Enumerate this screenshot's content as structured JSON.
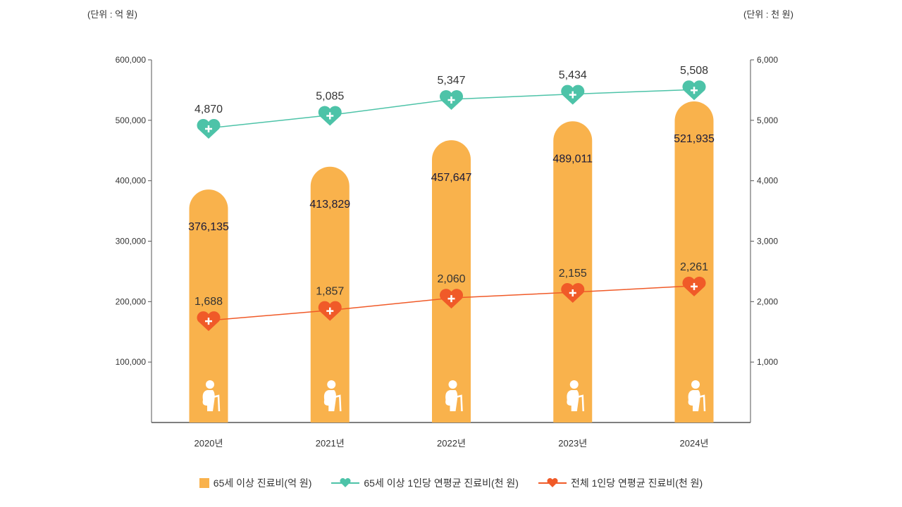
{
  "units": {
    "left": "(단위 : 억 원)",
    "right": "(단위 : 천 원)"
  },
  "colors": {
    "bar": "#F9B24C",
    "elderly_line": "#4DC3A8",
    "total_line": "#F05A28",
    "axis": "#555555"
  },
  "chart_data": {
    "type": "bar+line",
    "categories": [
      "2020년",
      "2021년",
      "2022년",
      "2023년",
      "2024년"
    ],
    "left_axis": {
      "ylim": [
        0,
        600000
      ],
      "ticks": [
        "100,000",
        "200,000",
        "300,000",
        "400,000",
        "500,000",
        "600,000"
      ],
      "tick_values": [
        100000,
        200000,
        300000,
        400000,
        500000,
        600000
      ]
    },
    "right_axis": {
      "ylim": [
        0,
        6000
      ],
      "ticks": [
        "1,000",
        "2,000",
        "3,000",
        "4,000",
        "5,000",
        "6,000"
      ],
      "tick_values": [
        1000,
        2000,
        3000,
        4000,
        5000,
        6000
      ]
    },
    "series": [
      {
        "name": "65세 이상 진료비(억 원)",
        "type": "bar",
        "axis": "left",
        "values": [
          376135,
          413829,
          457647,
          489011,
          521935
        ],
        "labels": [
          "376,135",
          "413,829",
          "457,647",
          "489,011",
          "521,935"
        ]
      },
      {
        "name": "65세 이상 1인당 연평균 진료비(천 원)",
        "type": "line",
        "axis": "right",
        "values": [
          4870,
          5085,
          5347,
          5434,
          5508
        ],
        "labels": [
          "4,870",
          "5,085",
          "5,347",
          "5,434",
          "5,508"
        ]
      },
      {
        "name": "전체 1인당 연평균 진료비(천 원)",
        "type": "line",
        "axis": "right",
        "values": [
          1688,
          1857,
          2060,
          2155,
          2261
        ],
        "labels": [
          "1,688",
          "1,857",
          "2,060",
          "2,155",
          "2,261"
        ]
      }
    ],
    "grid": false,
    "legend": "bottom"
  },
  "icons": {
    "bar_icon": "elderly-person-with-cane-icon",
    "marker": "heart-plus-icon"
  }
}
